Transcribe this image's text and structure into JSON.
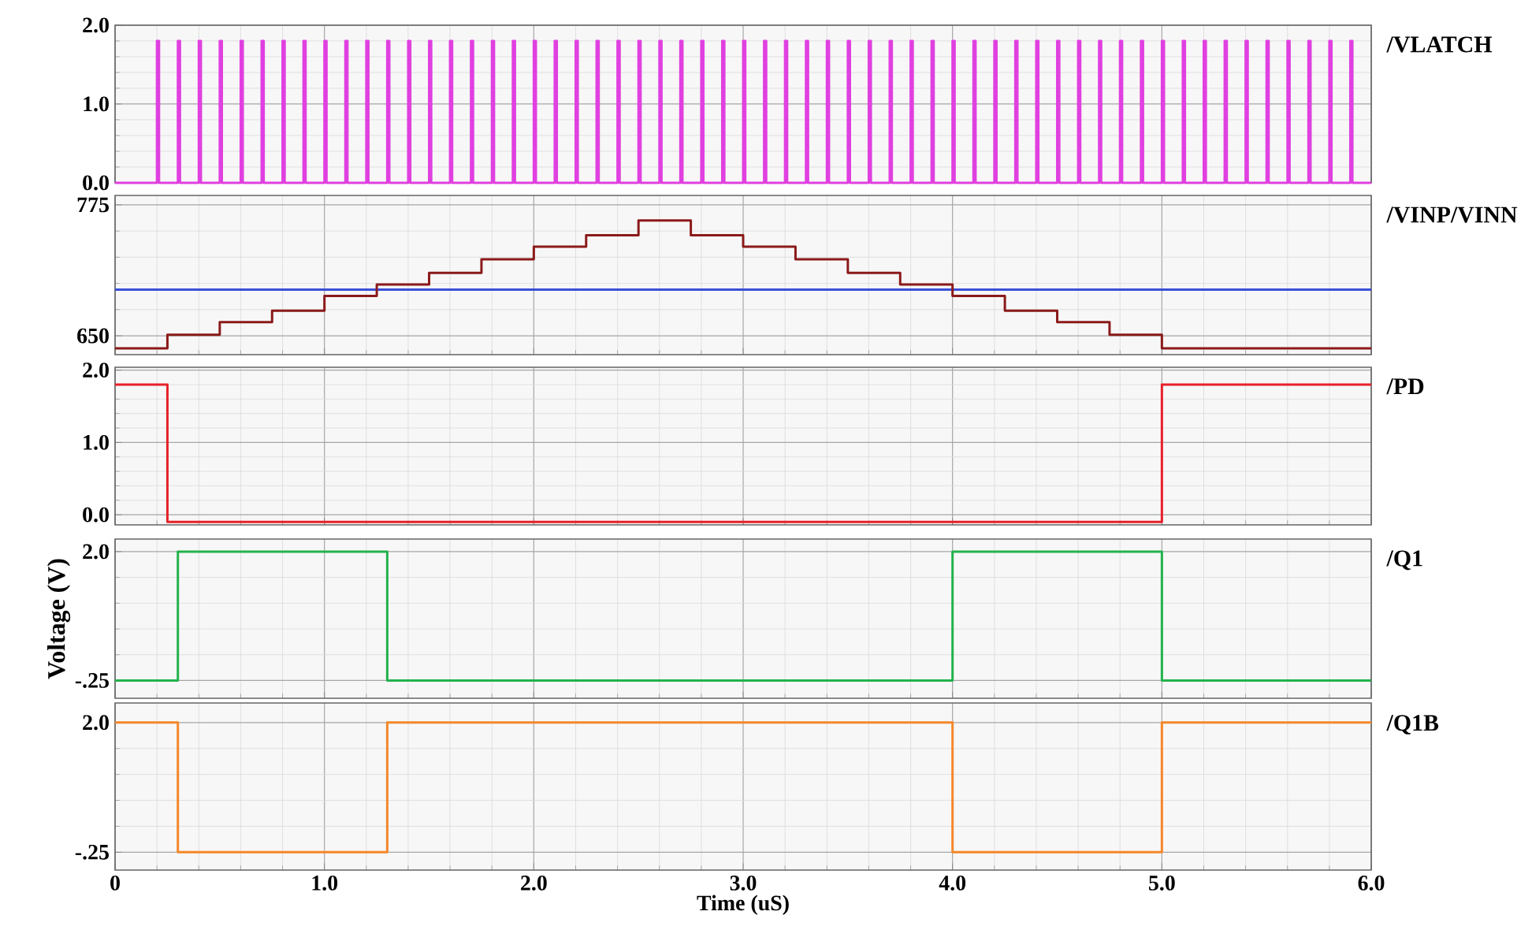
{
  "chart_data": [
    {
      "type": "step",
      "annotations": [
        "/VLATCH"
      ],
      "xlim": [
        0,
        6
      ],
      "ylim": [
        0,
        2
      ],
      "yticks": [
        {
          "value": 0,
          "label": "0.0"
        },
        {
          "value": 1,
          "label": "1.0"
        },
        {
          "value": 2,
          "label": "2.0"
        }
      ],
      "grid": true,
      "tick_labels": "y",
      "series": [
        {
          "color": "#e040e0",
          "x": [
            0,
            0.2,
            0.21,
            0.3,
            0.31,
            0.4,
            0.41,
            0.5,
            0.51,
            0.6,
            0.61,
            0.7,
            0.71,
            0.8,
            0.81,
            0.9,
            0.91,
            1.0,
            1.01,
            1.1,
            1.11,
            1.2,
            1.21,
            1.3,
            1.31,
            1.4,
            1.41,
            1.5,
            1.51,
            1.6,
            1.61,
            1.7,
            1.71,
            1.8,
            1.81,
            1.9,
            1.91,
            2.0,
            2.01,
            2.1,
            2.11,
            2.2,
            2.21,
            2.3,
            2.31,
            2.4,
            2.41,
            2.5,
            2.51,
            2.6,
            2.61,
            2.7,
            2.71,
            2.8,
            2.81,
            2.9,
            2.91,
            3.0,
            3.01,
            3.1,
            3.11,
            3.2,
            3.21,
            3.3,
            3.31,
            3.4,
            3.41,
            3.5,
            3.51,
            3.6,
            3.61,
            3.7,
            3.71,
            3.8,
            3.81,
            3.9,
            3.91,
            4.0,
            4.01,
            4.1,
            4.11,
            4.2,
            4.21,
            4.3,
            4.31,
            4.4,
            4.41,
            4.5,
            4.51,
            4.6,
            4.61,
            4.7,
            4.71,
            4.8,
            4.81,
            4.9,
            4.91,
            5.0,
            5.01,
            5.1,
            5.11,
            5.2,
            5.21,
            5.3,
            5.31,
            5.4,
            5.41,
            5.5,
            5.51,
            5.6,
            5.61,
            5.7,
            5.71,
            5.8,
            5.81,
            5.9,
            5.91,
            6.0
          ],
          "values": [
            0,
            1.8,
            0,
            1.8,
            0,
            1.8,
            0,
            1.8,
            0,
            1.8,
            0,
            1.8,
            0,
            1.8,
            0,
            1.8,
            0,
            1.8,
            0,
            1.8,
            0,
            1.8,
            0,
            1.8,
            0,
            1.8,
            0,
            1.8,
            0,
            1.8,
            0,
            1.8,
            0,
            1.8,
            0,
            1.8,
            0,
            1.8,
            0,
            1.8,
            0,
            1.8,
            0,
            1.8,
            0,
            1.8,
            0,
            1.8,
            0,
            1.8,
            0,
            1.8,
            0,
            1.8,
            0,
            1.8,
            0,
            1.8,
            0,
            1.8,
            0,
            1.8,
            0,
            1.8,
            0,
            1.8,
            0,
            1.8,
            0,
            1.8,
            0,
            1.8,
            0,
            1.8,
            0,
            1.8,
            0,
            1.8,
            0,
            1.8,
            0,
            1.8,
            0,
            1.8,
            0,
            1.8,
            0,
            1.8,
            0,
            1.8,
            0,
            1.8,
            0,
            1.8,
            0,
            1.8,
            0,
            1.8,
            0,
            1.8,
            0,
            1.8,
            0,
            1.8,
            0,
            1.8,
            0,
            1.8,
            0,
            1.8,
            0,
            1.8,
            0,
            1.8,
            0,
            1.8,
            0,
            0
          ]
        }
      ]
    },
    {
      "type": "step",
      "annotations": [
        "/VINP/VINN"
      ],
      "xlim": [
        0,
        6
      ],
      "ylim": [
        632,
        784
      ],
      "yticks": [
        650,
        775
      ],
      "grid": true,
      "tick_labels": "y",
      "series": [
        {
          "type": "line",
          "color": "#3a4fd8",
          "x": [
            0,
            6
          ],
          "values": [
            694,
            694
          ]
        },
        {
          "color": "#8b1a1a",
          "x": [
            0,
            0.25,
            0.5,
            0.75,
            1.0,
            1.25,
            1.5,
            1.75,
            2.0,
            2.25,
            2.5,
            2.75,
            3.0,
            3.25,
            3.5,
            3.75,
            4.0,
            4.25,
            4.5,
            4.75,
            5.0,
            6.0
          ],
          "values": [
            638,
            651,
            663,
            674,
            688,
            699,
            710,
            723,
            735,
            746,
            760,
            746,
            735,
            723,
            710,
            699,
            688,
            674,
            663,
            651,
            638,
            638
          ]
        }
      ]
    },
    {
      "type": "step",
      "annotations": [
        "/PD"
      ],
      "xlim": [
        0,
        6
      ],
      "ylim": [
        -0.14,
        2.04
      ],
      "yticks": [
        {
          "value": 0,
          "label": "0.0"
        },
        {
          "value": 1,
          "label": "1.0"
        },
        {
          "value": 2,
          "label": "2.0"
        }
      ],
      "grid": true,
      "tick_labels": "y",
      "series": [
        {
          "color": "#e8202a",
          "x": [
            0,
            0.25,
            5.0,
            6.0
          ],
          "values": [
            1.8,
            -0.1,
            1.8,
            1.8
          ]
        }
      ]
    },
    {
      "type": "step",
      "annotations": [
        "/Q1"
      ],
      "ylabel": "Voltage (V)",
      "xlim": [
        0,
        6
      ],
      "ylim": [
        -0.56,
        2.22
      ],
      "yticks": [
        {
          "value": -0.25,
          "label": "-.25"
        },
        {
          "value": 2,
          "label": "2.0"
        }
      ],
      "grid": true,
      "tick_labels": "y",
      "series": [
        {
          "color": "#22b24c",
          "x": [
            0,
            0.3,
            1.3,
            4.0,
            5.0,
            6.0
          ],
          "values": [
            -0.25,
            2.0,
            -0.25,
            2.0,
            -0.25,
            -0.25
          ]
        }
      ]
    },
    {
      "type": "step",
      "annotations": [
        "/Q1B"
      ],
      "xlabel": "Time (uS)",
      "xlim": [
        0,
        6
      ],
      "ylim": [
        -0.56,
        2.34
      ],
      "xticks": [
        0,
        {
          "value": 1,
          "label": "1.0"
        },
        {
          "value": 2,
          "label": "2.0"
        },
        {
          "value": 3,
          "label": "3.0"
        },
        {
          "value": 4,
          "label": "4.0"
        },
        {
          "value": 5,
          "label": "5.0"
        },
        {
          "value": 6,
          "label": "6.0"
        }
      ],
      "yticks": [
        {
          "value": -0.25,
          "label": "-.25"
        },
        {
          "value": 2,
          "label": "2.0"
        }
      ],
      "grid": true,
      "series": [
        {
          "color": "#f5872a",
          "x": [
            0,
            0.3,
            1.3,
            4.0,
            5.0,
            6.0
          ],
          "values": [
            2.0,
            -0.25,
            2.0,
            -0.25,
            2.0,
            2.0
          ]
        }
      ]
    }
  ]
}
